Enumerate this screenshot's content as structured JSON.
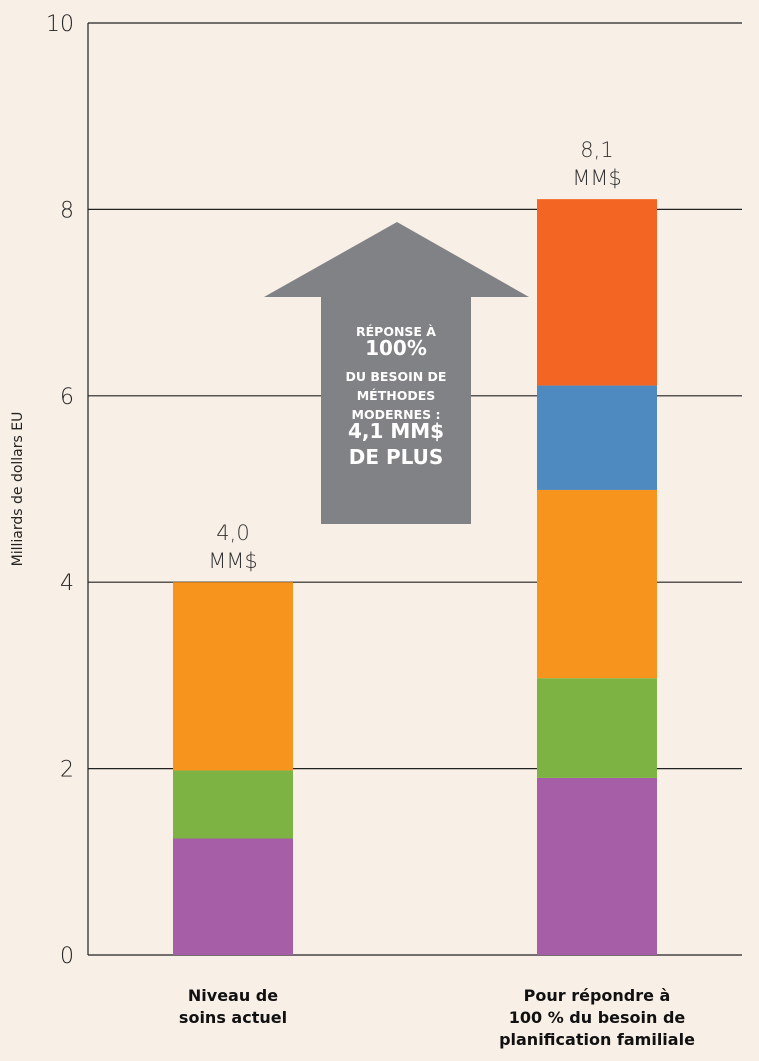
{
  "chart_data": {
    "type": "bar",
    "stacked": true,
    "ylabel": "Milliards de dollars EU",
    "xlabel": "",
    "ylim": [
      0,
      10
    ],
    "yticks": [
      0,
      2,
      4,
      6,
      8,
      10
    ],
    "y_tick_labels": [
      "0",
      "2",
      "4",
      "6",
      "8",
      "10"
    ],
    "grid": "horizontal",
    "categories": [
      [
        "Niveau de",
        "soins actuel"
      ],
      [
        "Pour répondre à",
        "100 % du besoin de",
        "planification familiale"
      ]
    ],
    "series": [
      {
        "color": "#a65ea6",
        "values": [
          1.25,
          1.9
        ]
      },
      {
        "color": "#7cb342",
        "values": [
          0.73,
          1.07
        ]
      },
      {
        "color": "#f7941d",
        "values": [
          2.02,
          2.02
        ]
      },
      {
        "color": "#4e89c0",
        "values": [
          0.0,
          1.12
        ]
      },
      {
        "color": "#f26522",
        "values": [
          0.0,
          2.0
        ]
      }
    ],
    "totals": [
      [
        "4,0",
        "MM$"
      ],
      [
        "8,1",
        "MM$"
      ]
    ],
    "annotation": {
      "color": "#808285",
      "lines": [
        {
          "text": "RÉPONSE À",
          "size": "small"
        },
        {
          "text": "100%",
          "size": "big"
        },
        {
          "text": "DU BESOIN DE",
          "size": "small"
        },
        {
          "text": "MÉTHODES",
          "size": "small"
        },
        {
          "text": "MODERNES :",
          "size": "small"
        },
        {
          "text": "4,1 MM$",
          "size": "big"
        },
        {
          "text": "DE  PLUS",
          "size": "big"
        }
      ]
    }
  }
}
